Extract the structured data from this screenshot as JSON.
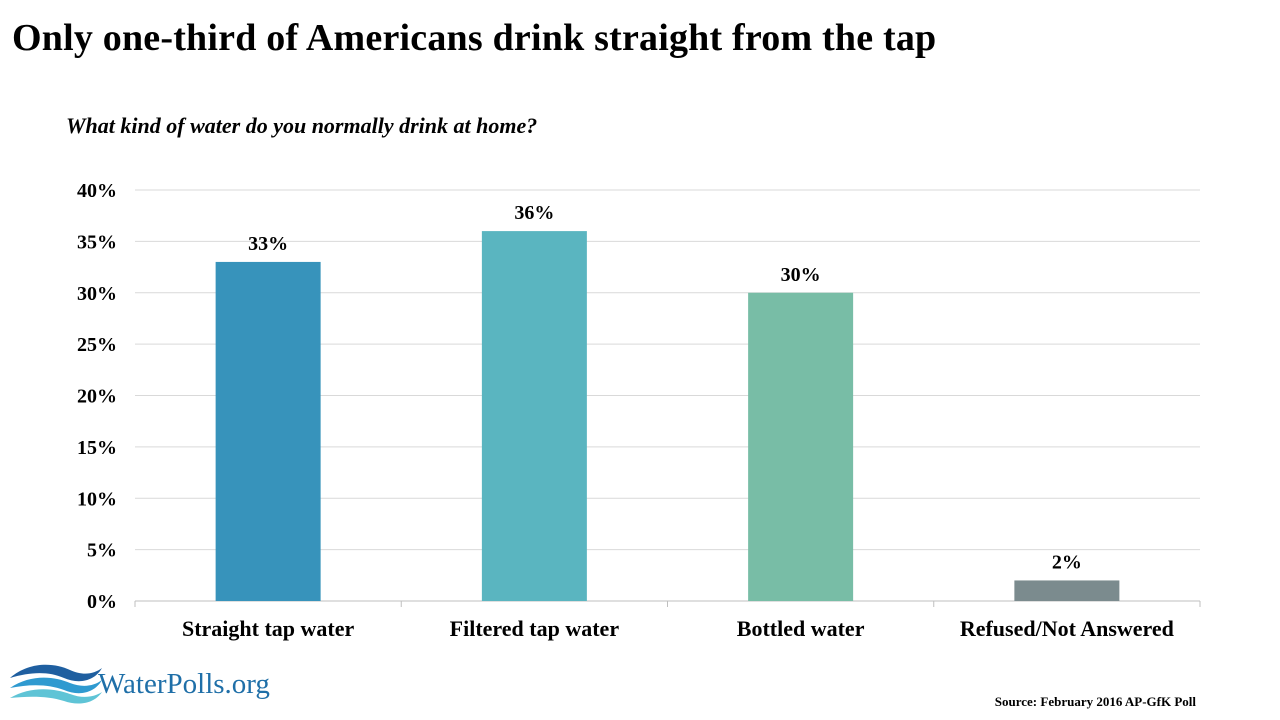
{
  "header": {
    "title": "Only one-third of Americans drink straight from the tap",
    "subtitle": "What kind of water do you normally drink at home?"
  },
  "chart_data": {
    "type": "bar",
    "categories": [
      "Straight tap water",
      "Filtered tap water",
      "Bottled water",
      "Refused/Not Answered"
    ],
    "values": [
      33,
      36,
      30,
      2
    ],
    "value_labels": [
      "33%",
      "36%",
      "30%",
      "2%"
    ],
    "colors": [
      "#3793bb",
      "#5ab5c0",
      "#78bda6",
      "#7b8b8e"
    ],
    "ylim": [
      0,
      40
    ],
    "yticks": [
      0,
      5,
      10,
      15,
      20,
      25,
      30,
      35,
      40
    ],
    "ytick_labels": [
      "0%",
      "5%",
      "10%",
      "15%",
      "20%",
      "25%",
      "30%",
      "35%",
      "40%"
    ],
    "grid": true,
    "legend": "none"
  },
  "footer": {
    "logo_text": "WaterPolls.org",
    "logo_icon": "water-waves-icon",
    "source": "Source: February 2016 AP-GfK Poll"
  }
}
